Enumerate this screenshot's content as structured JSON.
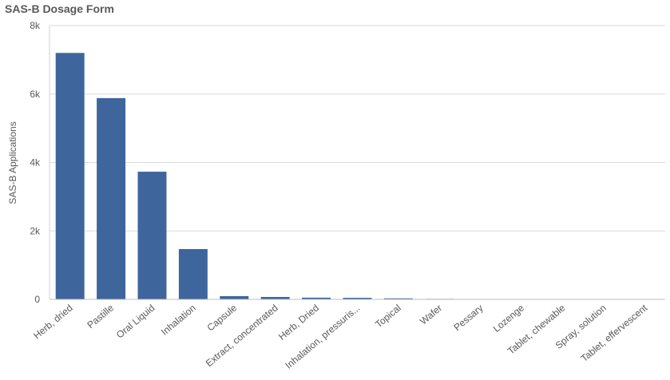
{
  "chart_data": {
    "type": "bar",
    "title": "SAS-B Dosage Form",
    "y_label": "SAS-B Applications",
    "categories": [
      "Herb, dried",
      "Pastille",
      "Oral Liquid",
      "Inhalation",
      "Capsule",
      "Extract, concentrated",
      "Herb, Dried",
      "Inhalation, pressuris...",
      "Topical",
      "Wafer",
      "Pessary",
      "Lozenge",
      "Tablet, chewable",
      "Spray, solution",
      "Tablet, effervescent"
    ],
    "values": [
      7200,
      5880,
      3730,
      1470,
      95,
      70,
      50,
      45,
      30,
      15,
      10,
      8,
      5,
      4,
      3
    ],
    "color": "#3e669d",
    "ylim": [
      0,
      8000
    ],
    "yticks": [
      0,
      {
        "value": 2000,
        "label": "2k"
      },
      {
        "value": 4000,
        "label": "4k"
      },
      {
        "value": 6000,
        "label": "6k"
      },
      {
        "value": 8000,
        "label": "8k"
      }
    ],
    "grid": true
  }
}
